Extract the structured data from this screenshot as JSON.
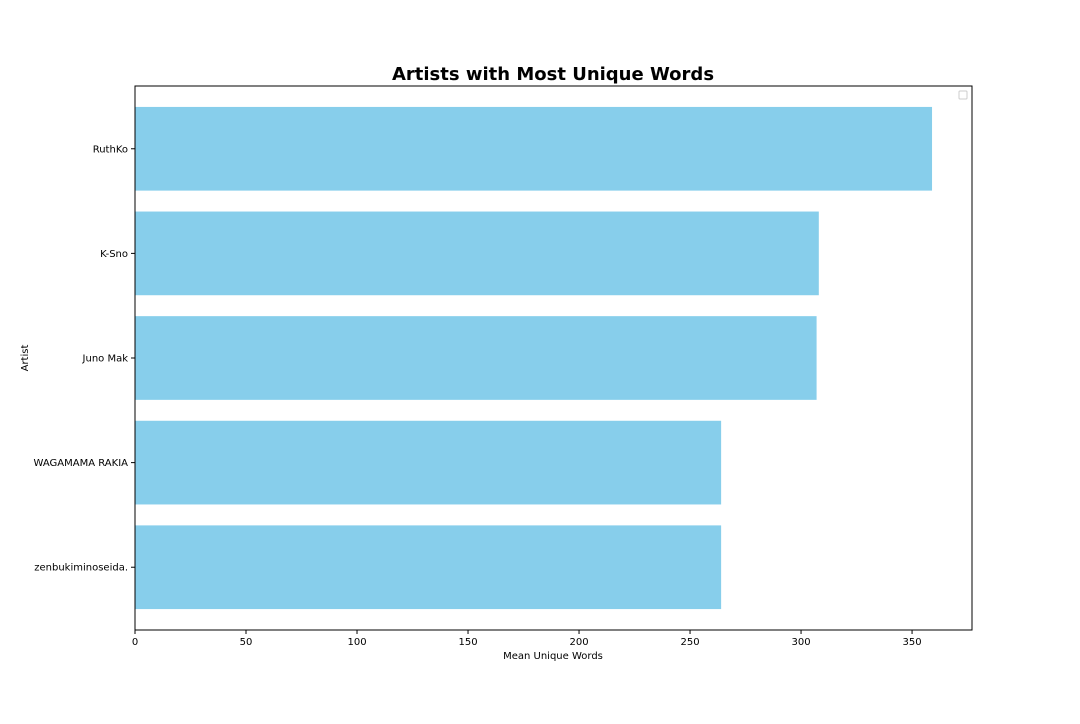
{
  "chart_data": {
    "type": "bar",
    "orientation": "horizontal",
    "title": "Artists with Most Unique Words",
    "xlabel": "Mean Unique Words",
    "ylabel": "Artist",
    "categories": [
      "RuthKo",
      "K-Sno",
      "Juno Mak",
      "WAGAMAMA RAKIA",
      "zenbukiminoseida."
    ],
    "values": [
      359,
      308,
      307,
      264,
      264
    ],
    "xlim": [
      0,
      377
    ],
    "xticks": [
      0,
      50,
      100,
      150,
      200,
      250,
      300,
      350
    ],
    "grid": false,
    "legend": {
      "position": "top-right",
      "entries": []
    },
    "colors": {
      "bar": "#87ceeb",
      "axis": "#000000"
    }
  }
}
